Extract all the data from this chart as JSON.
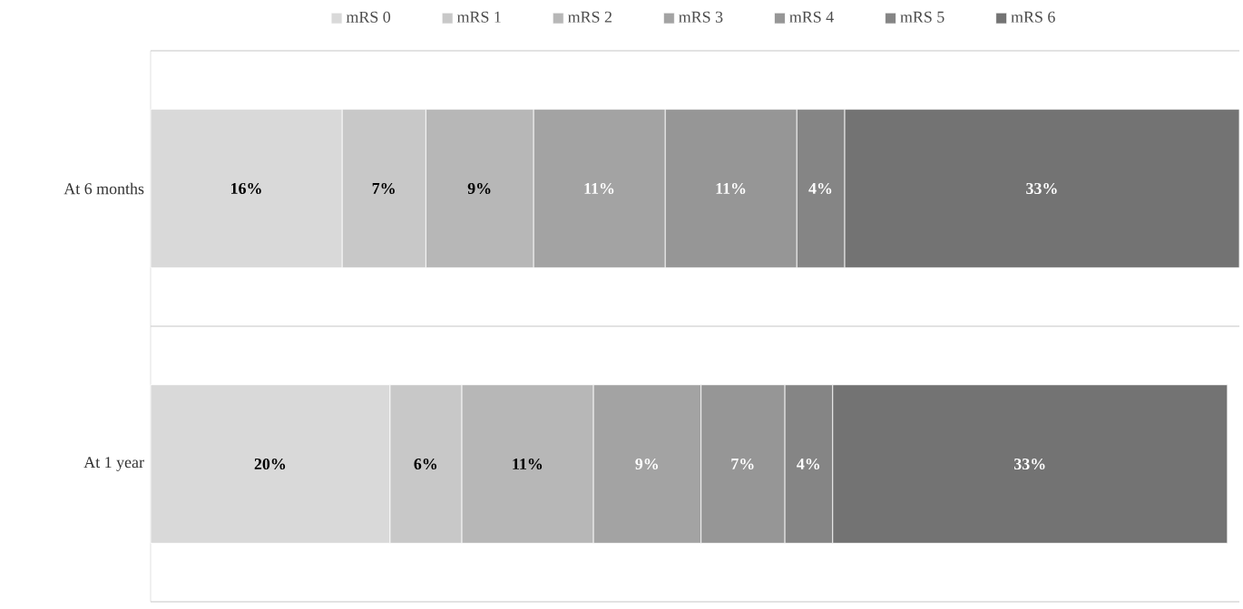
{
  "chart_data": {
    "type": "bar",
    "orientation": "horizontal",
    "stacked": true,
    "legend": "top",
    "categories": [
      "At 6 months",
      "At 1 year"
    ],
    "series": [
      {
        "name": "mRS 0",
        "color": "#d9d9d9",
        "values": [
          16,
          20
        ],
        "value_labels": [
          "16%",
          "20%"
        ]
      },
      {
        "name": "mRS 1",
        "color": "#c8c8c8",
        "values": [
          7,
          6
        ],
        "value_labels": [
          "7%",
          "6%"
        ]
      },
      {
        "name": "mRS 2",
        "color": "#b7b7b7",
        "values": [
          9,
          11
        ],
        "value_labels": [
          "9%",
          "11%"
        ]
      },
      {
        "name": "mRS 3",
        "color": "#a3a3a3",
        "values": [
          11,
          9
        ],
        "value_labels": [
          "11%",
          "9%"
        ]
      },
      {
        "name": "mRS 4",
        "color": "#969696",
        "values": [
          11,
          7
        ],
        "value_labels": [
          "11%",
          "7%"
        ]
      },
      {
        "name": "mRS 5",
        "color": "#858585",
        "values": [
          4,
          4
        ],
        "value_labels": [
          "4%",
          "4%"
        ]
      },
      {
        "name": "mRS 6",
        "color": "#737373",
        "values": [
          33,
          33
        ],
        "value_labels": [
          "33%",
          "33%"
        ]
      }
    ]
  }
}
